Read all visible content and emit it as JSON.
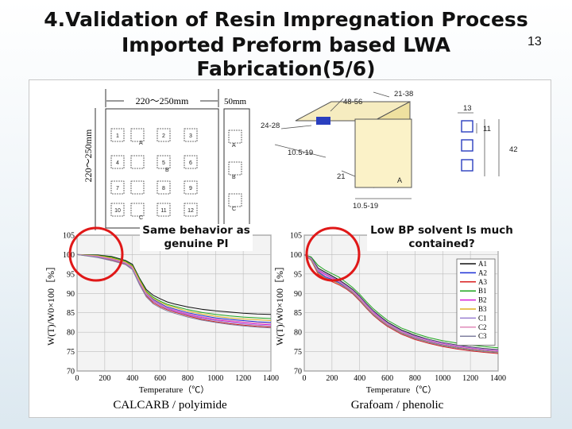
{
  "slide": {
    "title_line1": "4.Validation of Resin Impregnation Process",
    "title_line2": "Imported Preform based LWA",
    "title_line3": "Fabrication(5/6)",
    "page_number": "13"
  },
  "preform_diagram": {
    "width_label": "220～250mm",
    "height_label": "220～250mm",
    "strip_label": "50mm",
    "samples": [
      {
        "id": "1",
        "pos": "A"
      },
      {
        "id": "2",
        "pos": ""
      },
      {
        "id": "3",
        "pos": ""
      },
      {
        "id": "4",
        "pos": ""
      },
      {
        "id": "5",
        "pos": "B"
      },
      {
        "id": "6",
        "pos": ""
      },
      {
        "id": "7",
        "pos": ""
      },
      {
        "id": "8",
        "pos": ""
      },
      {
        "id": "9",
        "pos": ""
      },
      {
        "id": "10",
        "pos": "C"
      },
      {
        "id": "11",
        "pos": ""
      },
      {
        "id": "12",
        "pos": ""
      }
    ],
    "strip_letters": [
      "A",
      "B",
      "C"
    ]
  },
  "block_diagram": {
    "dims": [
      "21-38",
      "48-56",
      "24-28",
      "10.5-19",
      "21",
      "10.5-19",
      "13",
      "11",
      "42"
    ],
    "face_letter": "A"
  },
  "charts": {
    "left_callout": "Same behavior as genuine PI",
    "right_callout": "Low BP solvent Is much contained?",
    "left_caption": "CALCARB / polyimide",
    "right_caption": "Grafoam / phenolic"
  },
  "chart_data": [
    {
      "type": "line",
      "title": "",
      "xlabel": "Temperature（℃）",
      "ylabel": "W(T)/W0×100［%］",
      "xlim": [
        0,
        1400
      ],
      "ylim": [
        70,
        105
      ],
      "xticks": [
        0,
        200,
        400,
        600,
        800,
        1000,
        1200,
        1400
      ],
      "yticks": [
        70,
        75,
        80,
        85,
        90,
        95,
        100,
        105
      ],
      "grid": true,
      "series": [
        {
          "x": [
            0,
            150,
            250,
            350,
            400,
            450,
            500,
            550,
            600,
            650,
            700,
            800,
            900,
            1000,
            1100,
            1200,
            1300,
            1400
          ],
          "y": [
            100,
            99.9,
            99.5,
            98.5,
            97.5,
            94,
            91,
            89.5,
            88.6,
            87.8,
            87.3,
            86.5,
            85.9,
            85.5,
            85.2,
            84.9,
            84.7,
            84.6
          ]
        },
        {
          "x": [
            0,
            150,
            250,
            350,
            400,
            450,
            500,
            550,
            600,
            650,
            700,
            800,
            900,
            1000,
            1100,
            1200,
            1300,
            1400
          ],
          "y": [
            100,
            99.6,
            99,
            98,
            96.8,
            93.2,
            90,
            88.4,
            87.4,
            86.5,
            86,
            85,
            84.3,
            83.7,
            83.3,
            83,
            82.7,
            82.5
          ]
        },
        {
          "x": [
            0,
            150,
            250,
            350,
            400,
            450,
            500,
            550,
            600,
            650,
            700,
            800,
            900,
            1000,
            1100,
            1200,
            1300,
            1400
          ],
          "y": [
            100,
            99.3,
            98.6,
            97.6,
            96.3,
            92.6,
            89.4,
            87.6,
            86.6,
            85.8,
            85.2,
            84.2,
            83.3,
            82.7,
            82.2,
            81.8,
            81.5,
            81.3
          ]
        },
        {
          "x": [
            0,
            150,
            250,
            350,
            400,
            450,
            500,
            550,
            600,
            650,
            700,
            800,
            900,
            1000,
            1100,
            1200,
            1300,
            1400
          ],
          "y": [
            100,
            99.8,
            99.3,
            98.3,
            97.2,
            93.8,
            90.6,
            89,
            88,
            87.2,
            86.7,
            85.8,
            85.1,
            84.6,
            84.2,
            83.9,
            83.7,
            83.5
          ]
        },
        {
          "x": [
            0,
            150,
            250,
            350,
            400,
            450,
            500,
            550,
            600,
            650,
            700,
            800,
            900,
            1000,
            1100,
            1200,
            1300,
            1400
          ],
          "y": [
            100,
            99.5,
            98.8,
            97.8,
            96.6,
            93,
            89.8,
            88.1,
            87.1,
            86.2,
            85.6,
            84.6,
            83.8,
            83.2,
            82.8,
            82.4,
            82.1,
            81.9
          ]
        },
        {
          "x": [
            0,
            150,
            250,
            350,
            400,
            450,
            500,
            550,
            600,
            650,
            700,
            800,
            900,
            1000,
            1100,
            1200,
            1300,
            1400
          ],
          "y": [
            100,
            99.7,
            99.1,
            98.1,
            97,
            93.5,
            90.3,
            88.7,
            87.7,
            86.9,
            86.4,
            85.4,
            84.7,
            84.1,
            83.7,
            83.4,
            83.2,
            83
          ]
        },
        {
          "x": [
            0,
            150,
            250,
            350,
            400,
            450,
            500,
            550,
            600,
            650,
            700,
            800,
            900,
            1000,
            1100,
            1200,
            1300,
            1400
          ],
          "y": [
            100,
            99.4,
            98.7,
            97.7,
            96.4,
            92.8,
            89.6,
            87.9,
            86.9,
            86,
            85.4,
            84.4,
            83.6,
            83,
            82.5,
            82.1,
            81.8,
            81.6
          ]
        },
        {
          "x": [
            0,
            150,
            250,
            350,
            400,
            450,
            500,
            550,
            600,
            650,
            700,
            800,
            900,
            1000,
            1100,
            1200,
            1300,
            1400
          ],
          "y": [
            100,
            99.6,
            98.9,
            97.9,
            96.7,
            93.1,
            89.9,
            88.2,
            87.2,
            86.3,
            85.8,
            84.8,
            84,
            83.4,
            83,
            82.7,
            82.4,
            82.2
          ]
        },
        {
          "x": [
            0,
            150,
            250,
            350,
            400,
            450,
            500,
            550,
            600,
            650,
            700,
            800,
            900,
            1000,
            1100,
            1200,
            1300,
            1400
          ],
          "y": [
            100,
            99.2,
            98.4,
            97.4,
            96.1,
            92.3,
            89.1,
            87.3,
            86.3,
            85.5,
            84.9,
            83.9,
            83.1,
            82.5,
            82,
            81.6,
            81.3,
            81.1
          ]
        }
      ]
    },
    {
      "type": "line",
      "title": "",
      "xlabel": "Temperature（℃）",
      "ylabel": "W(T)/W0×100［%］",
      "xlim": [
        0,
        1400
      ],
      "ylim": [
        70,
        105
      ],
      "xticks": [
        0,
        200,
        400,
        600,
        800,
        1000,
        1200,
        1400
      ],
      "yticks": [
        70,
        75,
        80,
        85,
        90,
        95,
        100,
        105
      ],
      "grid": true,
      "legend": "right",
      "series": [
        {
          "name": "A1",
          "x": [
            0,
            50,
            100,
            150,
            200,
            250,
            300,
            350,
            400,
            450,
            500,
            550,
            600,
            700,
            800,
            900,
            1000,
            1100,
            1200,
            1300,
            1400
          ],
          "y": [
            100,
            99.2,
            96.5,
            95.5,
            94.5,
            93.5,
            92.3,
            91,
            89.3,
            87.3,
            85.5,
            84,
            82.6,
            80.6,
            79.2,
            78.1,
            77.3,
            76.7,
            76.2,
            75.8,
            75.5
          ]
        },
        {
          "name": "A2",
          "x": [
            0,
            50,
            100,
            150,
            200,
            250,
            300,
            350,
            400,
            450,
            500,
            550,
            600,
            700,
            800,
            900,
            1000,
            1100,
            1200,
            1300,
            1400
          ],
          "y": [
            100,
            98.8,
            95.6,
            94.3,
            93.6,
            92.8,
            91.7,
            90.4,
            88.6,
            86.6,
            84.8,
            83.3,
            82,
            80,
            78.6,
            77.6,
            76.8,
            76.2,
            75.7,
            75.3,
            75
          ]
        },
        {
          "name": "A3",
          "x": [
            0,
            50,
            100,
            150,
            200,
            250,
            300,
            350,
            400,
            450,
            500,
            550,
            600,
            700,
            800,
            900,
            1000,
            1100,
            1200,
            1300,
            1400
          ],
          "y": [
            100,
            98.5,
            95,
            93.8,
            93,
            92.2,
            91.2,
            89.9,
            88.1,
            86.1,
            84.3,
            82.8,
            81.5,
            79.5,
            78.1,
            77.1,
            76.3,
            75.7,
            75.2,
            74.8,
            74.5
          ]
        },
        {
          "name": "B1",
          "x": [
            0,
            50,
            100,
            150,
            200,
            250,
            300,
            350,
            400,
            450,
            500,
            550,
            600,
            700,
            800,
            900,
            1000,
            1100,
            1200,
            1300,
            1400
          ],
          "y": [
            100,
            99.4,
            97.2,
            96,
            95.1,
            94.2,
            92.9,
            91.5,
            89.8,
            87.8,
            86,
            84.5,
            83.1,
            81.1,
            79.7,
            78.6,
            77.8,
            77.2,
            76.7,
            76.3,
            76
          ]
        },
        {
          "name": "B2",
          "x": [
            0,
            50,
            100,
            150,
            200,
            250,
            300,
            350,
            400,
            450,
            500,
            550,
            600,
            700,
            800,
            900,
            1000,
            1100,
            1200,
            1300,
            1400
          ],
          "y": [
            100,
            99,
            96,
            94.9,
            94,
            93.1,
            91.9,
            90.6,
            88.9,
            86.9,
            85.1,
            83.6,
            82.3,
            80.3,
            78.9,
            77.9,
            77.1,
            76.5,
            76,
            75.6,
            75.3
          ]
        },
        {
          "name": "B3",
          "x": [
            0,
            50,
            100,
            150,
            200,
            250,
            300,
            350,
            400,
            450,
            500,
            550,
            600,
            700,
            800,
            900,
            1000,
            1100,
            1200,
            1300,
            1400
          ],
          "y": [
            100,
            98.6,
            95.3,
            94,
            93.3,
            92.5,
            91.5,
            90.2,
            88.4,
            86.4,
            84.6,
            83.1,
            81.8,
            79.8,
            78.4,
            77.4,
            76.6,
            76,
            75.5,
            75.1,
            74.8
          ]
        },
        {
          "name": "C1",
          "x": [
            0,
            50,
            100,
            150,
            200,
            250,
            300,
            350,
            400,
            450,
            500,
            550,
            600,
            700,
            800,
            900,
            1000,
            1100,
            1200,
            1300,
            1400
          ],
          "y": [
            100,
            99.1,
            96.2,
            95.2,
            94.2,
            93.3,
            92.1,
            90.8,
            89.1,
            87.1,
            85.3,
            83.8,
            82.4,
            80.4,
            79,
            78,
            77.2,
            76.6,
            76.1,
            75.7,
            75.4
          ]
        },
        {
          "name": "C2",
          "x": [
            0,
            50,
            100,
            150,
            200,
            250,
            300,
            350,
            400,
            450,
            500,
            550,
            600,
            700,
            800,
            900,
            1000,
            1100,
            1200,
            1300,
            1400
          ],
          "y": [
            100,
            98.9,
            95.8,
            94.6,
            93.8,
            93,
            91.8,
            90.5,
            88.7,
            86.7,
            84.9,
            83.4,
            82.1,
            80.1,
            78.7,
            77.7,
            76.9,
            76.3,
            75.8,
            75.4,
            75.1
          ]
        },
        {
          "name": "C3",
          "x": [
            0,
            50,
            100,
            150,
            200,
            250,
            300,
            350,
            400,
            450,
            500,
            550,
            600,
            700,
            800,
            900,
            1000,
            1100,
            1200,
            1300,
            1400
          ],
          "y": [
            100,
            98.7,
            95.4,
            94.1,
            93.4,
            92.6,
            91.4,
            90.1,
            88.3,
            86.3,
            84.5,
            83,
            81.7,
            79.7,
            78.3,
            77.3,
            76.5,
            75.9,
            75.4,
            75,
            74.7
          ]
        }
      ]
    }
  ],
  "colors": {
    "series": [
      "#111111",
      "#1b2fd6",
      "#d91f1f",
      "#1fa51f",
      "#d61fd6",
      "#e0b020",
      "#9a7fd0",
      "#e08ab8",
      "#8080a0"
    ],
    "circle": "#e01818",
    "chart_bg": "#f3f3f3",
    "grid": "#bdbdbd"
  }
}
